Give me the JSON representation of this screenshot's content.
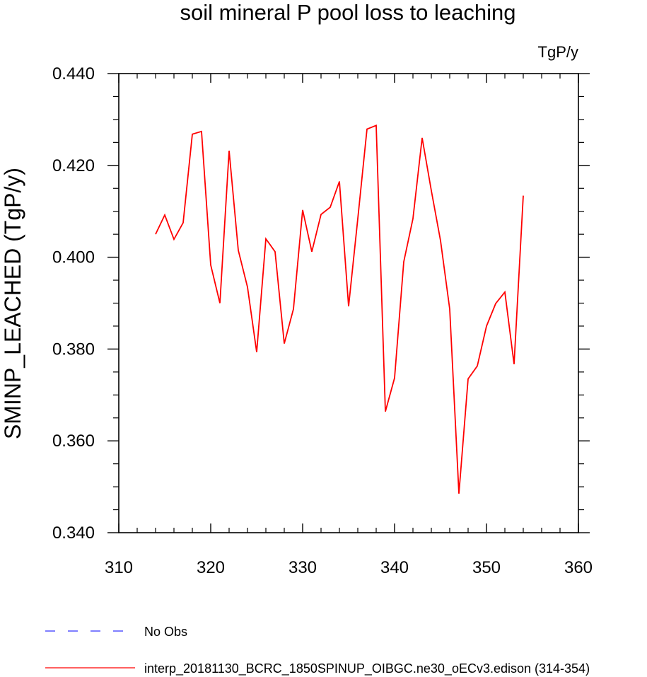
{
  "chart_data": {
    "type": "line",
    "title": "soil mineral P pool loss to leaching",
    "units_label": "TgP/y",
    "ylabel": "SMINP_LEACHED  (TgP/y)",
    "xlabel": "",
    "xlim": [
      310,
      360
    ],
    "ylim": [
      0.34,
      0.44
    ],
    "x_ticks": [
      "310",
      "320",
      "330",
      "340",
      "350",
      "360"
    ],
    "y_ticks": [
      "0.340",
      "0.360",
      "0.380",
      "0.400",
      "0.420",
      "0.440"
    ],
    "grid": false,
    "legend_position": "bottom-left",
    "series": [
      {
        "name": "interp_20181130_BCRC_1850SPINUP_OIBGC.ne30_oECv3.edison (314-354)",
        "color": "#ff0000",
        "dash": "solid",
        "x": [
          314,
          315,
          316,
          317,
          318,
          319,
          320,
          321,
          322,
          323,
          324,
          325,
          326,
          327,
          328,
          329,
          330,
          331,
          332,
          333,
          334,
          335,
          336,
          337,
          338,
          339,
          340,
          341,
          342,
          343,
          344,
          345,
          346,
          347,
          348,
          349,
          350,
          351,
          352,
          353,
          354
        ],
        "y": [
          0.405,
          0.4092,
          0.4039,
          0.4075,
          0.4268,
          0.4274,
          0.3983,
          0.39,
          0.4232,
          0.4015,
          0.3935,
          0.3793,
          0.404,
          0.4012,
          0.3812,
          0.3887,
          0.4103,
          0.4012,
          0.4093,
          0.4109,
          0.4165,
          0.3893,
          0.4084,
          0.4279,
          0.4287,
          0.3664,
          0.3737,
          0.399,
          0.4084,
          0.426,
          0.4145,
          0.4036,
          0.3887,
          0.3485,
          0.3735,
          0.3763,
          0.385,
          0.3899,
          0.3924,
          0.3767,
          0.4134
        ]
      }
    ],
    "legend": [
      {
        "label": "No Obs",
        "color": "#3333ff",
        "dash": "dashed"
      },
      {
        "label": "interp_20181130_BCRC_1850SPINUP_OIBGC.ne30_oECv3.edison (314-354)",
        "color": "#ff0000",
        "dash": "solid"
      }
    ]
  }
}
